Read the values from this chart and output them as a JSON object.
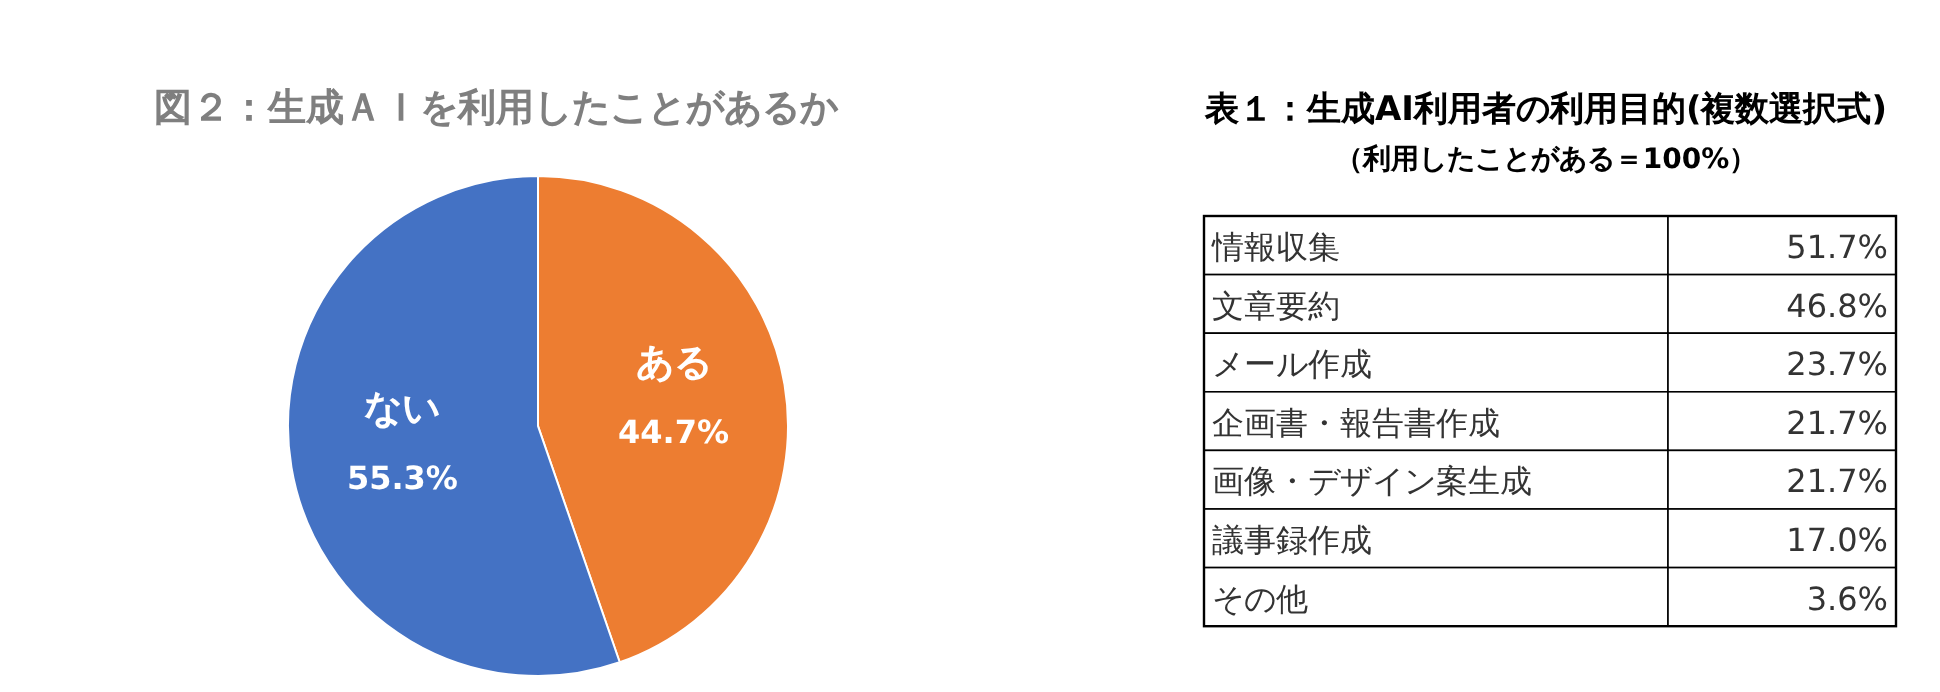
{
  "chart_data": [
    {
      "type": "pie",
      "title": "図２：生成ＡＩを利用したことがあるか",
      "categories": [
        "ある",
        "ない"
      ],
      "values": [
        44.7,
        55.3
      ],
      "value_labels": [
        "44.7%",
        "55.3%"
      ],
      "colors": [
        "#ed7d31",
        "#4472c4"
      ],
      "data_labels": true,
      "legend": false
    },
    {
      "type": "other",
      "title": "表１：生成AI利用者の利用目的(複数選択式)",
      "subtitle": "（利用したことがある＝100%）",
      "categories": [
        "情報収集",
        "文章要約",
        "メール作成",
        "企画書・報告書作成",
        "画像・デザイン案生成",
        "議事録作成",
        "その他"
      ],
      "value_labels": [
        "51.7%",
        "46.8%",
        "23.7%",
        "21.7%",
        "21.7%",
        "17.0%",
        "3.6%"
      ]
    }
  ]
}
